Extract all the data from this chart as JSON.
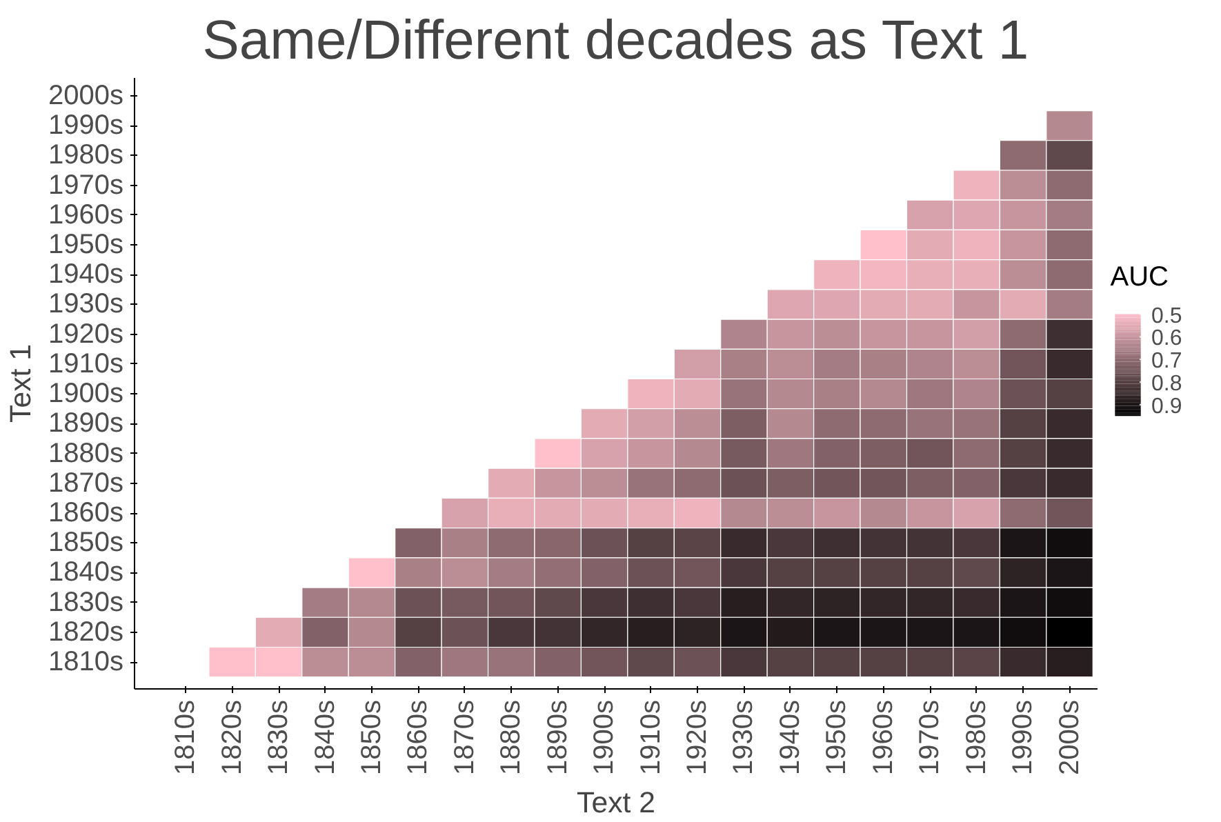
{
  "chart_data": {
    "type": "heatmap",
    "title": "Same/Different decades as Text 1",
    "xlabel": "Text 2",
    "ylabel": "Text 1",
    "clabel": "AUC",
    "categories": [
      "1810s",
      "1820s",
      "1830s",
      "1840s",
      "1850s",
      "1860s",
      "1870s",
      "1880s",
      "1890s",
      "1900s",
      "1910s",
      "1920s",
      "1930s",
      "1940s",
      "1950s",
      "1960s",
      "1970s",
      "1980s",
      "1990s",
      "2000s"
    ],
    "y_categories": [
      "2000s",
      "1990s",
      "1980s",
      "1970s",
      "1960s",
      "1950s",
      "1940s",
      "1930s",
      "1920s",
      "1910s",
      "1900s",
      "1890s",
      "1880s",
      "1870s",
      "1860s",
      "1850s",
      "1840s",
      "1830s",
      "1820s",
      "1810s"
    ],
    "cells": [
      [
        null,
        null,
        null,
        null,
        null,
        null,
        null,
        null,
        null,
        null,
        null,
        null,
        null,
        null,
        null,
        null,
        null,
        null,
        null,
        null
      ],
      [
        null,
        null,
        null,
        null,
        null,
        null,
        null,
        null,
        null,
        null,
        null,
        null,
        null,
        null,
        null,
        null,
        null,
        null,
        null,
        0.63
      ],
      [
        null,
        null,
        null,
        null,
        null,
        null,
        null,
        null,
        null,
        null,
        null,
        null,
        null,
        null,
        null,
        null,
        null,
        null,
        0.7,
        0.78
      ],
      [
        null,
        null,
        null,
        null,
        null,
        null,
        null,
        null,
        null,
        null,
        null,
        null,
        null,
        null,
        null,
        null,
        null,
        0.53,
        0.62,
        0.7
      ],
      [
        null,
        null,
        null,
        null,
        null,
        null,
        null,
        null,
        null,
        null,
        null,
        null,
        null,
        null,
        null,
        null,
        0.57,
        0.56,
        0.6,
        0.66
      ],
      [
        null,
        null,
        null,
        null,
        null,
        null,
        null,
        null,
        null,
        null,
        null,
        null,
        null,
        null,
        null,
        0.5,
        0.55,
        0.53,
        0.6,
        0.7
      ],
      [
        null,
        null,
        null,
        null,
        null,
        null,
        null,
        null,
        null,
        null,
        null,
        null,
        null,
        null,
        0.53,
        0.52,
        0.54,
        0.54,
        0.62,
        0.7
      ],
      [
        null,
        null,
        null,
        null,
        null,
        null,
        null,
        null,
        null,
        null,
        null,
        null,
        null,
        0.56,
        0.56,
        0.55,
        0.55,
        0.6,
        0.55,
        0.66
      ],
      [
        null,
        null,
        null,
        null,
        null,
        null,
        null,
        null,
        null,
        null,
        null,
        null,
        0.64,
        0.6,
        0.62,
        0.6,
        0.6,
        0.58,
        0.7,
        0.84
      ],
      [
        null,
        null,
        null,
        null,
        null,
        null,
        null,
        null,
        null,
        null,
        null,
        0.58,
        0.65,
        0.62,
        0.66,
        0.65,
        0.64,
        0.62,
        0.75,
        0.85
      ],
      [
        null,
        null,
        null,
        null,
        null,
        null,
        null,
        null,
        null,
        null,
        0.53,
        0.55,
        0.68,
        0.63,
        0.65,
        0.63,
        0.67,
        0.64,
        0.76,
        0.8
      ],
      [
        null,
        null,
        null,
        null,
        null,
        null,
        null,
        null,
        null,
        0.55,
        0.58,
        0.62,
        0.73,
        0.63,
        0.7,
        0.7,
        0.68,
        0.68,
        0.8,
        0.85
      ],
      [
        null,
        null,
        null,
        null,
        null,
        null,
        null,
        null,
        0.5,
        0.57,
        0.6,
        0.63,
        0.74,
        0.67,
        0.72,
        0.73,
        0.75,
        0.7,
        0.8,
        0.85
      ],
      [
        null,
        null,
        null,
        null,
        null,
        null,
        null,
        0.55,
        0.6,
        0.62,
        0.68,
        0.7,
        0.76,
        0.73,
        0.75,
        0.75,
        0.73,
        0.72,
        0.82,
        0.85
      ],
      [
        null,
        null,
        null,
        null,
        null,
        null,
        0.57,
        0.54,
        0.55,
        0.55,
        0.54,
        0.53,
        0.63,
        0.62,
        0.6,
        0.63,
        0.6,
        0.57,
        0.7,
        0.75
      ],
      [
        null,
        null,
        null,
        null,
        null,
        0.72,
        0.65,
        0.7,
        0.71,
        0.76,
        0.8,
        0.79,
        0.85,
        0.82,
        0.84,
        0.83,
        0.83,
        0.82,
        0.9,
        0.92
      ],
      [
        null,
        null,
        null,
        null,
        0.5,
        0.65,
        0.62,
        0.66,
        0.69,
        0.72,
        0.76,
        0.75,
        0.82,
        0.8,
        0.8,
        0.8,
        0.8,
        0.78,
        0.87,
        0.9
      ],
      [
        null,
        null,
        null,
        0.66,
        0.63,
        0.76,
        0.74,
        0.75,
        0.78,
        0.82,
        0.84,
        0.82,
        0.88,
        0.86,
        0.87,
        0.86,
        0.86,
        0.85,
        0.9,
        0.92
      ],
      [
        null,
        null,
        0.55,
        0.72,
        0.63,
        0.8,
        0.76,
        0.82,
        0.83,
        0.86,
        0.88,
        0.87,
        0.9,
        0.89,
        0.9,
        0.9,
        0.9,
        0.9,
        0.92,
        0.95
      ],
      [
        null,
        0.5,
        0.5,
        0.62,
        0.62,
        0.72,
        0.67,
        0.68,
        0.72,
        0.75,
        0.78,
        0.76,
        0.82,
        0.8,
        0.8,
        0.8,
        0.8,
        0.79,
        0.85,
        0.88
      ]
    ],
    "clim": [
      0.5,
      0.95
    ],
    "cticks": [
      0.5,
      0.6,
      0.7,
      0.8,
      0.9
    ]
  }
}
